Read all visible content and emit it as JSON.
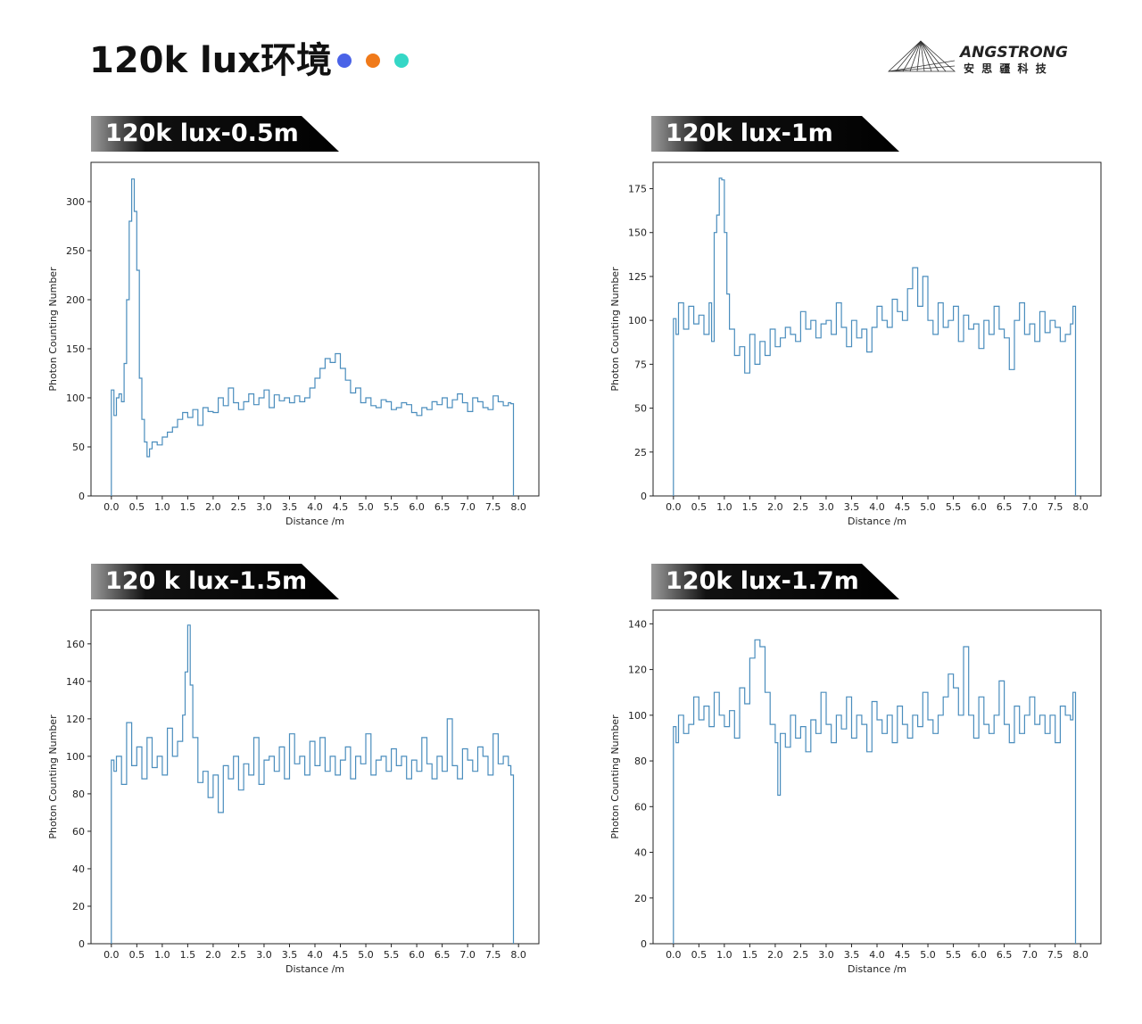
{
  "page": {
    "title": "120k lux环境",
    "dot_colors": [
      "#4a63e7",
      "#f07a1a",
      "#35d7c6"
    ]
  },
  "logo": {
    "brand": "ANGSTRONG",
    "tagline": "安 思 疆 科 技"
  },
  "chart_data": [
    {
      "type": "line",
      "panel_label": "120k lux-0.5m",
      "xlabel": "Distance /m",
      "ylabel": "Photon Counting Number",
      "xlim": [
        -0.4,
        8.4
      ],
      "ylim": [
        0,
        340
      ],
      "xticks": [
        0.0,
        0.5,
        1.0,
        1.5,
        2.0,
        2.5,
        3.0,
        3.5,
        4.0,
        4.5,
        5.0,
        5.5,
        6.0,
        6.5,
        7.0,
        7.5,
        8.0
      ],
      "yticks": [
        0,
        50,
        100,
        150,
        200,
        250,
        300
      ],
      "series": [
        {
          "color": "#4a8dbd",
          "x": [
            0.0,
            0.05,
            0.1,
            0.15,
            0.2,
            0.25,
            0.3,
            0.35,
            0.4,
            0.45,
            0.5,
            0.55,
            0.6,
            0.65,
            0.7,
            0.75,
            0.8,
            0.9,
            1.0,
            1.1,
            1.2,
            1.3,
            1.4,
            1.5,
            1.6,
            1.7,
            1.8,
            1.9,
            2.0,
            2.1,
            2.2,
            2.3,
            2.4,
            2.5,
            2.6,
            2.7,
            2.8,
            2.9,
            3.0,
            3.1,
            3.2,
            3.3,
            3.4,
            3.5,
            3.6,
            3.7,
            3.8,
            3.9,
            4.0,
            4.1,
            4.2,
            4.3,
            4.4,
            4.5,
            4.6,
            4.7,
            4.8,
            4.9,
            5.0,
            5.1,
            5.2,
            5.3,
            5.4,
            5.5,
            5.6,
            5.7,
            5.8,
            5.9,
            6.0,
            6.1,
            6.2,
            6.3,
            6.4,
            6.5,
            6.6,
            6.7,
            6.8,
            6.9,
            7.0,
            7.1,
            7.2,
            7.3,
            7.4,
            7.5,
            7.6,
            7.7,
            7.8,
            7.85,
            7.9
          ],
          "y": [
            108,
            82,
            100,
            104,
            96,
            135,
            200,
            280,
            323,
            290,
            230,
            120,
            78,
            55,
            40,
            48,
            55,
            52,
            60,
            65,
            70,
            78,
            85,
            80,
            88,
            72,
            90,
            86,
            85,
            100,
            92,
            110,
            95,
            88,
            96,
            104,
            93,
            100,
            108,
            90,
            103,
            97,
            100,
            95,
            102,
            96,
            100,
            110,
            120,
            130,
            140,
            136,
            145,
            130,
            118,
            105,
            110,
            95,
            100,
            92,
            90,
            98,
            96,
            88,
            90,
            95,
            93,
            85,
            82,
            90,
            88,
            96,
            93,
            100,
            90,
            98,
            104,
            95,
            86,
            100,
            96,
            90,
            88,
            102,
            96,
            92,
            95,
            94,
            0
          ]
        }
      ]
    },
    {
      "type": "line",
      "panel_label": "120k lux-1m",
      "xlabel": "Distance /m",
      "ylabel": "Photon Counting Number",
      "xlim": [
        -0.4,
        8.4
      ],
      "ylim": [
        0,
        190
      ],
      "xticks": [
        0.0,
        0.5,
        1.0,
        1.5,
        2.0,
        2.5,
        3.0,
        3.5,
        4.0,
        4.5,
        5.0,
        5.5,
        6.0,
        6.5,
        7.0,
        7.5,
        8.0
      ],
      "yticks": [
        0,
        25,
        50,
        75,
        100,
        125,
        150,
        175
      ],
      "series": [
        {
          "color": "#4a8dbd",
          "x": [
            0.0,
            0.05,
            0.1,
            0.2,
            0.3,
            0.4,
            0.5,
            0.6,
            0.7,
            0.75,
            0.8,
            0.85,
            0.9,
            0.95,
            1.0,
            1.05,
            1.1,
            1.2,
            1.3,
            1.4,
            1.5,
            1.6,
            1.7,
            1.8,
            1.9,
            2.0,
            2.1,
            2.2,
            2.3,
            2.4,
            2.5,
            2.6,
            2.7,
            2.8,
            2.9,
            3.0,
            3.1,
            3.2,
            3.3,
            3.4,
            3.5,
            3.6,
            3.7,
            3.8,
            3.9,
            4.0,
            4.1,
            4.2,
            4.3,
            4.4,
            4.5,
            4.6,
            4.7,
            4.8,
            4.9,
            5.0,
            5.1,
            5.2,
            5.3,
            5.4,
            5.5,
            5.6,
            5.7,
            5.8,
            5.9,
            6.0,
            6.1,
            6.2,
            6.3,
            6.4,
            6.5,
            6.6,
            6.7,
            6.8,
            6.9,
            7.0,
            7.1,
            7.2,
            7.3,
            7.4,
            7.5,
            7.6,
            7.7,
            7.8,
            7.85,
            7.9
          ],
          "y": [
            101,
            92,
            110,
            95,
            108,
            98,
            103,
            92,
            110,
            88,
            150,
            160,
            181,
            180,
            150,
            115,
            95,
            80,
            85,
            70,
            92,
            75,
            88,
            80,
            95,
            85,
            90,
            96,
            92,
            88,
            105,
            95,
            100,
            90,
            98,
            100,
            92,
            110,
            96,
            85,
            100,
            90,
            95,
            82,
            96,
            108,
            100,
            96,
            112,
            105,
            100,
            118,
            130,
            108,
            125,
            100,
            92,
            110,
            96,
            100,
            108,
            88,
            103,
            95,
            98,
            84,
            100,
            92,
            108,
            95,
            90,
            72,
            100,
            110,
            92,
            98,
            88,
            105,
            93,
            100,
            96,
            88,
            92,
            98,
            108,
            0
          ]
        }
      ]
    },
    {
      "type": "line",
      "panel_label": "120 k lux-1.5m",
      "xlabel": "Distance /m",
      "ylabel": "Photon Counting Number",
      "xlim": [
        -0.4,
        8.4
      ],
      "ylim": [
        0,
        178
      ],
      "xticks": [
        0.0,
        0.5,
        1.0,
        1.5,
        2.0,
        2.5,
        3.0,
        3.5,
        4.0,
        4.5,
        5.0,
        5.5,
        6.0,
        6.5,
        7.0,
        7.5,
        8.0
      ],
      "yticks": [
        0,
        20,
        40,
        60,
        80,
        100,
        120,
        140,
        160
      ],
      "series": [
        {
          "color": "#4a8dbd",
          "x": [
            0.0,
            0.05,
            0.1,
            0.2,
            0.3,
            0.4,
            0.5,
            0.6,
            0.7,
            0.8,
            0.9,
            1.0,
            1.1,
            1.2,
            1.3,
            1.4,
            1.45,
            1.5,
            1.55,
            1.6,
            1.7,
            1.8,
            1.9,
            2.0,
            2.1,
            2.2,
            2.3,
            2.4,
            2.5,
            2.6,
            2.7,
            2.8,
            2.9,
            3.0,
            3.1,
            3.2,
            3.3,
            3.4,
            3.5,
            3.6,
            3.7,
            3.8,
            3.9,
            4.0,
            4.1,
            4.2,
            4.3,
            4.4,
            4.5,
            4.6,
            4.7,
            4.8,
            4.9,
            5.0,
            5.1,
            5.2,
            5.3,
            5.4,
            5.5,
            5.6,
            5.7,
            5.8,
            5.9,
            6.0,
            6.1,
            6.2,
            6.3,
            6.4,
            6.5,
            6.6,
            6.7,
            6.8,
            6.9,
            7.0,
            7.1,
            7.2,
            7.3,
            7.4,
            7.5,
            7.6,
            7.7,
            7.8,
            7.85,
            7.9
          ],
          "y": [
            98,
            92,
            100,
            85,
            118,
            95,
            105,
            88,
            110,
            94,
            100,
            90,
            115,
            100,
            108,
            122,
            145,
            170,
            138,
            110,
            86,
            92,
            78,
            90,
            70,
            95,
            88,
            100,
            82,
            96,
            90,
            110,
            85,
            98,
            100,
            92,
            105,
            88,
            112,
            96,
            100,
            90,
            108,
            95,
            110,
            92,
            100,
            90,
            98,
            105,
            88,
            100,
            96,
            112,
            90,
            98,
            100,
            92,
            104,
            95,
            100,
            88,
            98,
            92,
            110,
            96,
            88,
            100,
            92,
            120,
            95,
            88,
            104,
            98,
            92,
            105,
            100,
            90,
            112,
            96,
            100,
            95,
            90,
            0
          ]
        }
      ]
    },
    {
      "type": "line",
      "panel_label": "120k lux-1.7m",
      "xlabel": "Distance /m",
      "ylabel": "Photon Counting Number",
      "xlim": [
        -0.4,
        8.4
      ],
      "ylim": [
        0,
        146
      ],
      "xticks": [
        0.0,
        0.5,
        1.0,
        1.5,
        2.0,
        2.5,
        3.0,
        3.5,
        4.0,
        4.5,
        5.0,
        5.5,
        6.0,
        6.5,
        7.0,
        7.5,
        8.0
      ],
      "yticks": [
        0,
        20,
        40,
        60,
        80,
        100,
        120,
        140
      ],
      "series": [
        {
          "color": "#4a8dbd",
          "x": [
            0.0,
            0.05,
            0.1,
            0.2,
            0.3,
            0.4,
            0.5,
            0.6,
            0.7,
            0.8,
            0.9,
            1.0,
            1.1,
            1.2,
            1.3,
            1.4,
            1.5,
            1.6,
            1.7,
            1.8,
            1.9,
            2.0,
            2.05,
            2.1,
            2.2,
            2.3,
            2.4,
            2.5,
            2.6,
            2.7,
            2.8,
            2.9,
            3.0,
            3.1,
            3.2,
            3.3,
            3.4,
            3.5,
            3.6,
            3.7,
            3.8,
            3.9,
            4.0,
            4.1,
            4.2,
            4.3,
            4.4,
            4.5,
            4.6,
            4.7,
            4.8,
            4.9,
            5.0,
            5.1,
            5.2,
            5.3,
            5.4,
            5.5,
            5.6,
            5.7,
            5.8,
            5.9,
            6.0,
            6.1,
            6.2,
            6.3,
            6.4,
            6.5,
            6.6,
            6.7,
            6.8,
            6.9,
            7.0,
            7.1,
            7.2,
            7.3,
            7.4,
            7.5,
            7.6,
            7.7,
            7.8,
            7.85,
            7.9
          ],
          "y": [
            95,
            88,
            100,
            92,
            96,
            108,
            98,
            104,
            95,
            110,
            100,
            95,
            102,
            90,
            112,
            105,
            125,
            133,
            130,
            110,
            96,
            88,
            65,
            92,
            86,
            100,
            90,
            95,
            84,
            98,
            92,
            110,
            96,
            88,
            100,
            94,
            108,
            90,
            100,
            96,
            84,
            106,
            98,
            92,
            100,
            88,
            104,
            96,
            90,
            100,
            95,
            110,
            98,
            92,
            100,
            108,
            118,
            112,
            100,
            130,
            100,
            90,
            108,
            96,
            92,
            100,
            115,
            96,
            88,
            104,
            92,
            100,
            108,
            96,
            100,
            92,
            100,
            88,
            104,
            100,
            98,
            110,
            0
          ]
        }
      ]
    }
  ]
}
